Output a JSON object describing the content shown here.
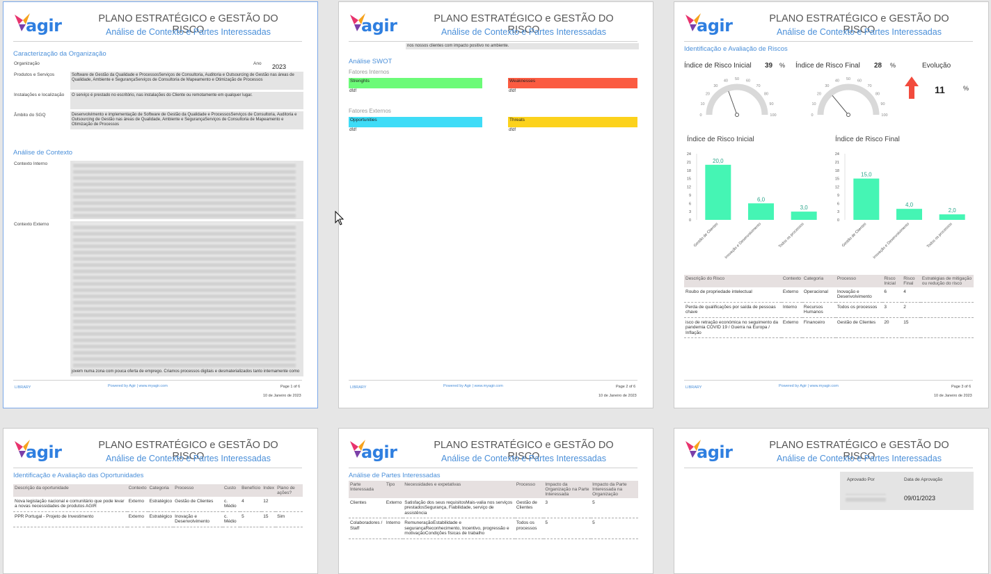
{
  "header": {
    "logo": "agir",
    "title": "PLANO ESTRATÉGICO e GESTÃO DO RISCO",
    "subtitle": "Análise de Contexto e Partes Interessadas"
  },
  "footer": {
    "library": "LIBRARY",
    "powered": "Powered by Agir | www.myagir.com",
    "date": "10 de Janeiro de 2023",
    "pages": [
      "Page 1 of 6",
      "Page 2 of 6",
      "Page 3 of 6"
    ]
  },
  "page1": {
    "sec_org": "Caracterização da Organização",
    "org_label": "Organização",
    "year_label": "Ano",
    "year": "2023",
    "prod_label": "Produtos e Serviços",
    "prod_value": "Software de Gestão da Qualidade e ProcessosServiços de Consultoria, Auditoria e Outsourcing de Gestão nas áreas de Qualidade, Ambiente e SegurançaServiços de Consultoria de Mapeamento e Otimização de Processos",
    "inst_label": "Instalações e localização",
    "inst_value": "O serviço é prestado no escritório, nas instalações do Cliente ou remotamente em qualquer lugar.",
    "amb_label": "Âmbito do SGQ",
    "amb_value": "Desenvolvimento e implementação de Software de Gestão da Qualidade e ProcessosServiços de Consultoria, Auditoria e Outsourcing de Gestão nas áreas de Qualidade, Ambiente e SegurançaServiços de Consultoria de Mapeamento e Otimização de Processos",
    "sec_ctx": "Análise de Contexto",
    "ctx_int_label": "Contexto Interno",
    "ctx_ext_label": "Contexto Externo",
    "ctx_ext_tail": "jovem numa zona com pouca oferta de emprego. Criamos processos digitais e desmaterializados tanto internamente como"
  },
  "page2": {
    "top_text": "nos nossos clientes com impacto positivo no ambiente.",
    "sec_swot": "Análise SWOT",
    "internal": "Fatores Internos",
    "external": "Fatores Externos",
    "strengths": "Strenghts",
    "weaknesses": "Weaknesses",
    "opportunities": "Opportunities",
    "threats": "Threats",
    "cell": "dfdf",
    "colors": {
      "strengths": "#6cfb78",
      "weaknesses": "#fb5b41",
      "opportunities": "#3fdcf7",
      "threats": "#fcd21c"
    }
  },
  "page3": {
    "sec": "Identificação e Avaliação de Riscos",
    "ini_label": "Índice de Risco Inicial",
    "ini_value": "39",
    "fin_label": "Índice de Risco Final",
    "fin_value": "28",
    "pct": "%",
    "evo_label": "Evolução",
    "evo_value": "11",
    "gauge_ticks": [
      "0",
      "10",
      "20",
      "30",
      "40",
      "50",
      "60",
      "70",
      "80",
      "90",
      "100"
    ],
    "table": {
      "headers": [
        "Descrição do Risco",
        "Contexto",
        "Categoria",
        "Processo",
        "Risco Inicial",
        "Risco Final",
        "Estratégias de mitigação ou redução do risco"
      ],
      "rows": [
        [
          "Roubo de propriedade intelectual",
          "Externo",
          "Operacional",
          "Inovação e Desenvolvimento",
          "6",
          "4",
          ""
        ],
        [
          "Perda de qualificações por saída de pessoas chave",
          "Interno",
          "Recursos Humanos",
          "Todos os processos",
          "3",
          "2",
          ""
        ],
        [
          "isco de retração económica no seguimento da pandemia COVID 19 / Guerra na Europa / Inflação",
          "Externo",
          "Financeiro",
          "Gestão de Clientes",
          "20",
          "15",
          ""
        ]
      ]
    }
  },
  "chart_data": [
    {
      "type": "bar",
      "title": "Índice de Risco Inicial",
      "categories": [
        "Gestão de Clientes",
        "Inovação e Desenvolvimento",
        "Todos os processos"
      ],
      "values": [
        20.0,
        6.0,
        3.0
      ],
      "value_labels": [
        "20,0",
        "6,0",
        "3,0"
      ],
      "ylim": [
        0,
        24
      ],
      "yticks": [
        "0",
        "3",
        "6",
        "9",
        "12",
        "15",
        "18",
        "21",
        "24"
      ],
      "color": "#45f5b4"
    },
    {
      "type": "bar",
      "title": "Índice de Risco Final",
      "categories": [
        "Gestão de Clientes",
        "Inovação e Desenvolvimento",
        "Todos os processos"
      ],
      "values": [
        15.0,
        4.0,
        2.0
      ],
      "value_labels": [
        "15,0",
        "4,0",
        "2,0"
      ],
      "ylim": [
        0,
        24
      ],
      "yticks": [
        "0",
        "3",
        "6",
        "9",
        "12",
        "15",
        "18",
        "21",
        "24"
      ],
      "color": "#45f5b4"
    }
  ],
  "page4": {
    "sec": "Identificação e Avaliação das Oportunidades",
    "headers": [
      "Descrição da oportunidade",
      "Contexto",
      "Categoria",
      "Processo",
      "Custo",
      "Benefício",
      "Index",
      "Plano de ações?"
    ],
    "rows": [
      [
        "Nova legislação nacional e comunitário que pode levar a novas necessidades de produtos AGIR",
        "Externo",
        "Estratégico",
        "Gestão de Clientes",
        "c. Médio",
        "4",
        "12",
        ""
      ],
      [
        "PPR Portugal - Projeto de Investimento",
        "Externo",
        "Estratégico",
        "Inovação e Desenvolvimento",
        "c. Médio",
        "5",
        "15",
        "Sim"
      ]
    ]
  },
  "page5": {
    "sec": "Análise de Partes Interessadas",
    "headers": [
      "Parte Interessada",
      "Tipo",
      "Necessidades e expetativas",
      "Processo",
      "Impacto da Organização na Parte Interessada",
      "Impacto da Parte Interessada na Organização"
    ],
    "rows": [
      [
        "Clientes",
        "Externo",
        "Satisfação dos seus requisitosMais-valia nos serviços prestadosSegurança, Fiabilidade, serviço de assistência",
        "Gestão de Clientes",
        "3",
        "5"
      ],
      [
        "Colaboradores / Staff",
        "Interno",
        "RemuneraçãoEstabilidade e segurançaReconhecimento, Incentivo, progressão e motivaçãoCondições físicas de trabalho",
        "Todos os processos",
        "5",
        "5"
      ]
    ]
  },
  "page6": {
    "approved_by": "Aprovado Por",
    "approval_date": "Data de Aprovação",
    "date_value": "09/01/2023"
  }
}
